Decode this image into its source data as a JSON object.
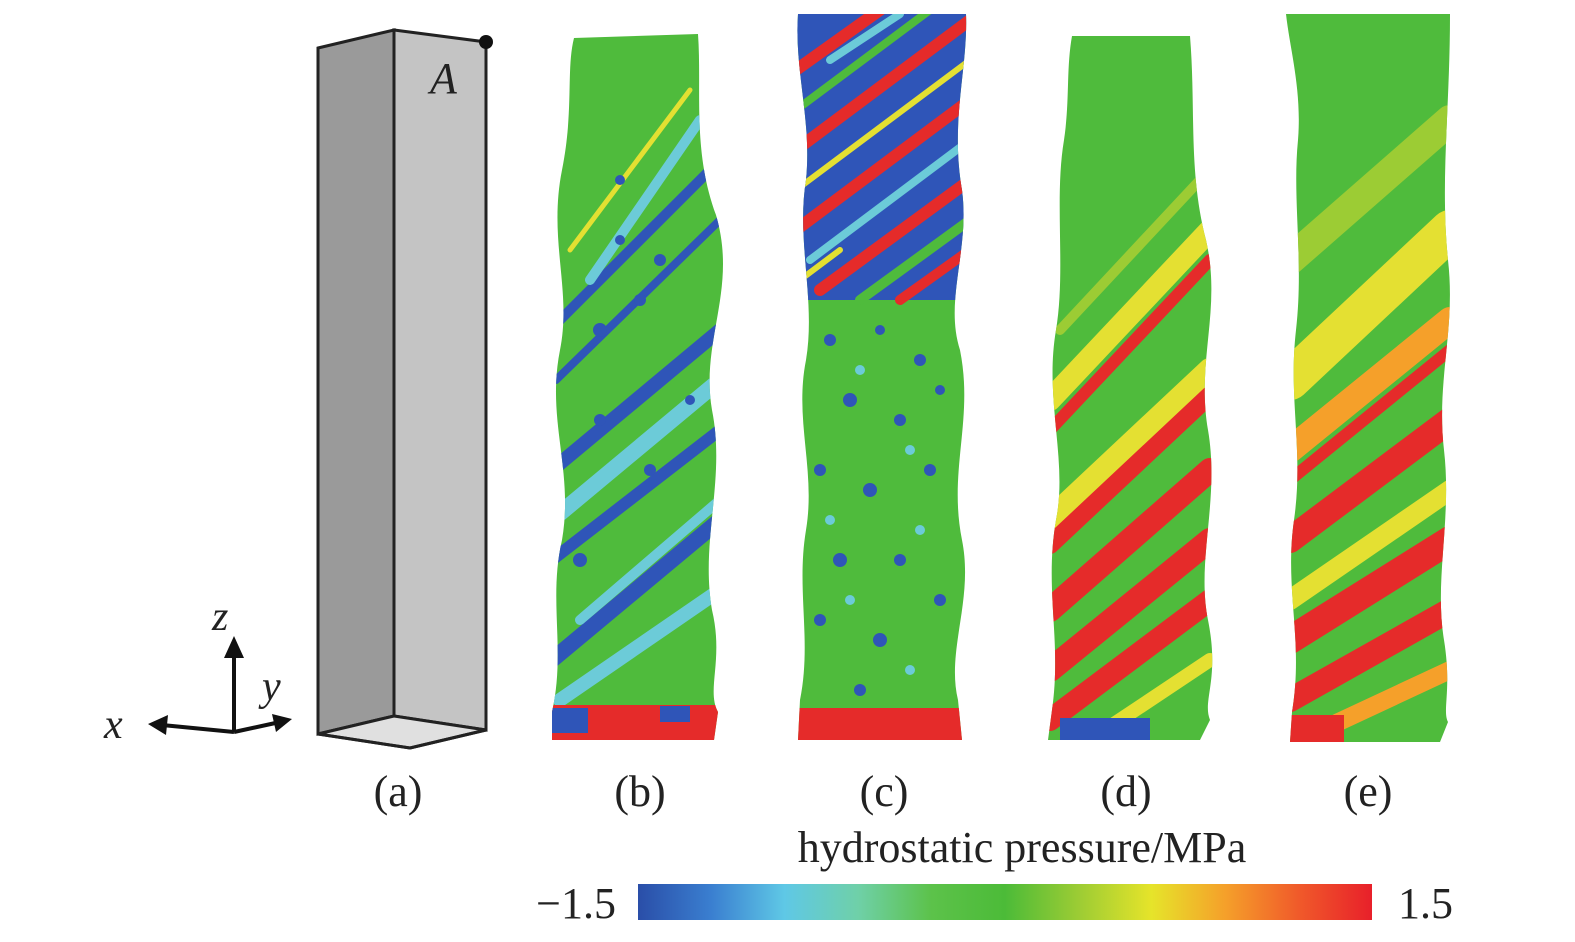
{
  "panels": [
    {
      "label": "(a)",
      "kind": "undeformed",
      "point_label": "A"
    },
    {
      "label": "(b)",
      "kind": "twisted",
      "pattern": "mixed-stripes"
    },
    {
      "label": "(c)",
      "kind": "twisted",
      "pattern": "noisy-top"
    },
    {
      "label": "(d)",
      "kind": "twisted",
      "pattern": "compression-spiral"
    },
    {
      "label": "(e)",
      "kind": "twisted",
      "pattern": "compression-strong"
    }
  ],
  "axes": {
    "x": "x",
    "y": "y",
    "z": "z"
  },
  "colorbar": {
    "title": "hydrostatic pressure/MPa",
    "min_label": "−1.5",
    "max_label": "1.5",
    "min": -1.5,
    "max": 1.5,
    "colors": [
      "#2a4ea8",
      "#3a7fd0",
      "#5fc8e6",
      "#6fd0a8",
      "#5cc24a",
      "#4cbb38",
      "#9ccc34",
      "#e6e42a",
      "#f5a02a",
      "#f05a2a",
      "#e8202a"
    ]
  },
  "colors": {
    "green": "#4fbb3c",
    "blue": "#2f55b8",
    "red": "#e52b2a",
    "cyan": "#6ccbd8",
    "yellow": "#e4e032",
    "prism_dark": "#9a9a9a",
    "prism_light": "#c4c4c4",
    "prism_bottom": "#e0e0e0"
  }
}
